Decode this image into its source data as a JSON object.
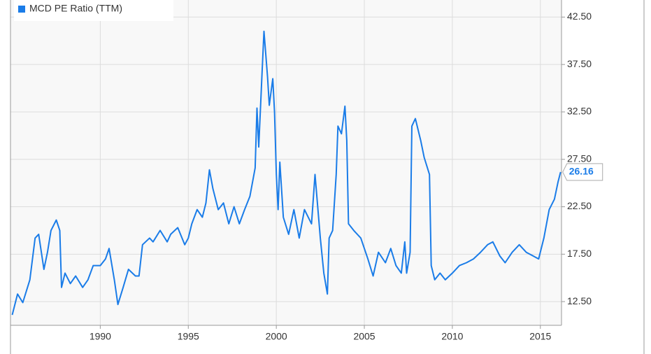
{
  "chart_data": {
    "type": "line",
    "series": [
      {
        "name": "MCD PE Ratio (TTM)",
        "color": "#1a7ce8",
        "x": [
          1985.0,
          1985.3,
          1985.6,
          1986.0,
          1986.3,
          1986.5,
          1986.8,
          1987.0,
          1987.2,
          1987.5,
          1987.7,
          1987.8,
          1988.0,
          1988.3,
          1988.6,
          1989.0,
          1989.3,
          1989.6,
          1990.0,
          1990.3,
          1990.5,
          1990.8,
          1991.0,
          1991.3,
          1991.6,
          1992.0,
          1992.2,
          1992.4,
          1992.8,
          1993.0,
          1993.4,
          1993.8,
          1994.0,
          1994.4,
          1994.8,
          1995.0,
          1995.2,
          1995.5,
          1995.8,
          1996.0,
          1996.2,
          1996.4,
          1996.7,
          1997.0,
          1997.3,
          1997.6,
          1997.9,
          1998.2,
          1998.5,
          1998.8,
          1998.9,
          1999.0,
          1999.2,
          1999.3,
          1999.5,
          1999.6,
          1999.8,
          1999.9,
          2000.0,
          2000.1,
          2000.2,
          2000.4,
          2000.7,
          2001.0,
          2001.3,
          2001.6,
          2002.0,
          2002.2,
          2002.5,
          2002.7,
          2002.9,
          2003.0,
          2003.2,
          2003.4,
          2003.5,
          2003.7,
          2003.9,
          2004.0,
          2004.1,
          2004.4,
          2004.8,
          2005.2,
          2005.5,
          2005.8,
          2006.2,
          2006.5,
          2006.8,
          2007.1,
          2007.3,
          2007.4,
          2007.6,
          2007.7,
          2007.9,
          2008.2,
          2008.4,
          2008.7,
          2008.8,
          2009.0,
          2009.3,
          2009.6,
          2010.0,
          2010.4,
          2010.8,
          2011.2,
          2011.6,
          2012.0,
          2012.3,
          2012.7,
          2013.0,
          2013.4,
          2013.8,
          2014.2,
          2014.6,
          2014.9,
          2015.2,
          2015.5,
          2015.8,
          2016.0,
          2016.15
        ],
        "values": [
          11.1,
          13.3,
          12.4,
          14.8,
          19.2,
          19.6,
          15.9,
          17.7,
          20.0,
          21.1,
          20.0,
          14.0,
          15.5,
          14.4,
          15.2,
          14.0,
          14.8,
          16.3,
          16.3,
          17.0,
          18.1,
          14.8,
          12.2,
          14.0,
          15.9,
          15.2,
          15.2,
          18.5,
          19.2,
          18.8,
          20.0,
          18.8,
          19.6,
          20.3,
          18.5,
          19.2,
          20.7,
          22.2,
          21.4,
          22.9,
          26.4,
          24.4,
          22.2,
          22.9,
          20.7,
          22.5,
          20.7,
          22.2,
          23.6,
          26.6,
          32.9,
          28.8,
          37.0,
          41.0,
          36.2,
          33.2,
          36.0,
          32.5,
          25.9,
          22.2,
          27.2,
          21.4,
          19.6,
          22.2,
          19.2,
          22.2,
          20.7,
          25.9,
          19.2,
          15.5,
          13.3,
          19.2,
          20.0,
          25.9,
          31.0,
          30.2,
          33.1,
          29.5,
          20.7,
          20.0,
          19.2,
          17.0,
          15.2,
          17.7,
          16.6,
          18.1,
          16.3,
          15.5,
          18.8,
          15.5,
          17.7,
          31.0,
          31.8,
          29.5,
          27.7,
          25.9,
          16.3,
          14.8,
          15.5,
          14.8,
          15.5,
          16.3,
          16.6,
          17.0,
          17.7,
          18.5,
          18.8,
          17.3,
          16.6,
          17.7,
          18.5,
          17.7,
          17.3,
          17.0,
          19.2,
          22.2,
          23.3,
          25.1,
          26.16
        ]
      }
    ],
    "xlim": [
      1984.9,
      2016.2
    ],
    "xticks": [
      1990,
      1995,
      2000,
      2005,
      2010,
      2015
    ],
    "ylim": [
      10,
      44.3
    ],
    "yticks": [
      {
        "value": 12.5,
        "label": "12.50"
      },
      {
        "value": 17.5,
        "label": "17.50"
      },
      {
        "value": 22.5,
        "label": "22.50"
      },
      {
        "value": 27.5,
        "label": "27.50"
      },
      {
        "value": 32.5,
        "label": "32.50"
      },
      {
        "value": 37.5,
        "label": "37.50"
      },
      {
        "value": 42.5,
        "label": "42.50"
      }
    ],
    "grid": true,
    "legend": "top-left"
  }
}
